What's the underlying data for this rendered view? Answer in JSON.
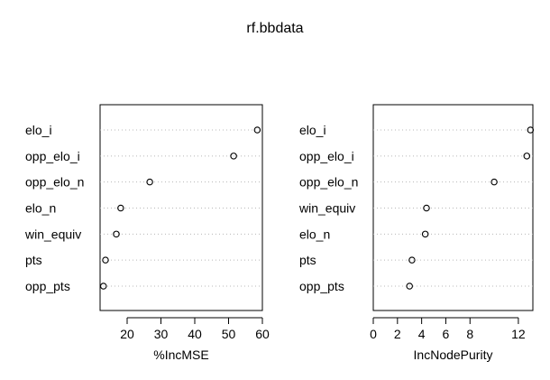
{
  "chart_data": {
    "type": "scatter",
    "title": "rf.bbdata",
    "panels": [
      {
        "xlabel": "%IncMSE",
        "xlim": [
          12,
          60
        ],
        "xticks": [
          20,
          30,
          40,
          50,
          60
        ],
        "grid": "horizontal dotted",
        "categories": [
          "elo_i",
          "opp_elo_i",
          "opp_elo_n",
          "elo_n",
          "win_equiv",
          "pts",
          "opp_pts"
        ],
        "values": [
          58.5,
          51.5,
          26.7,
          18.1,
          16.8,
          13.6,
          13.0
        ]
      },
      {
        "xlabel": "IncNodePurity",
        "xlim": [
          0,
          13.2
        ],
        "xticks": [
          0,
          2,
          4,
          6,
          8,
          12
        ],
        "grid": "horizontal dotted",
        "categories": [
          "elo_i",
          "opp_elo_i",
          "opp_elo_n",
          "win_equiv",
          "elo_n",
          "pts",
          "opp_pts"
        ],
        "values": [
          13.0,
          12.7,
          10.0,
          4.4,
          4.3,
          3.2,
          3.0
        ]
      }
    ]
  }
}
